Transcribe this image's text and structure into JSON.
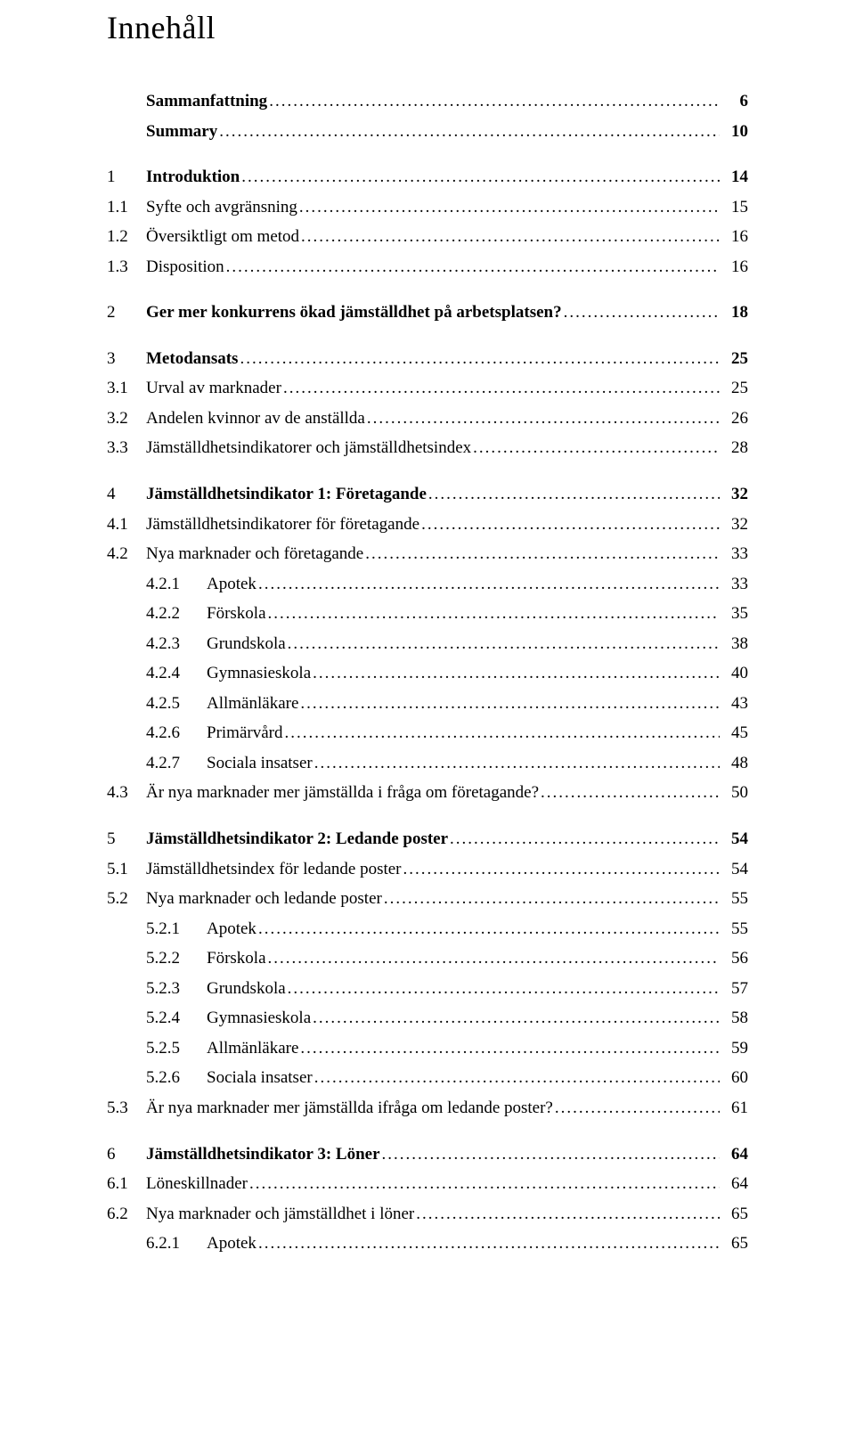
{
  "title": "Innehåll",
  "leader": "................................................................................................................................................................................................................",
  "entries": [
    {
      "level": 0,
      "num": "",
      "text": "Sammanfattning",
      "page": "6",
      "bold": true
    },
    {
      "level": 0,
      "num": "",
      "text": "Summary",
      "page": "10",
      "bold": true
    },
    {
      "level": 1,
      "num": "1",
      "text": "Introduktion",
      "page": "14",
      "bold": true,
      "gapBefore": "lg"
    },
    {
      "level": 2,
      "num": "1.1",
      "text": "Syfte och avgränsning",
      "page": "15"
    },
    {
      "level": 2,
      "num": "1.2",
      "text": "Översiktligt om metod",
      "page": "16"
    },
    {
      "level": 2,
      "num": "1.3",
      "text": "Disposition",
      "page": "16"
    },
    {
      "level": 1,
      "num": "2",
      "text": "Ger mer konkurrens ökad jämställdhet på arbetsplatsen?",
      "page": "18",
      "bold": true,
      "gapBefore": "lg"
    },
    {
      "level": 1,
      "num": "3",
      "text": "Metodansats",
      "page": "25",
      "bold": true,
      "gapBefore": "lg"
    },
    {
      "level": 2,
      "num": "3.1",
      "text": "Urval av marknader",
      "page": "25"
    },
    {
      "level": 2,
      "num": "3.2",
      "text": "Andelen kvinnor av de anställda",
      "page": "26"
    },
    {
      "level": 2,
      "num": "3.3",
      "text": "Jämställdhetsindikatorer och jämställdhetsindex",
      "page": "28"
    },
    {
      "level": 1,
      "num": "4",
      "text": "Jämställdhetsindikator 1: Företagande",
      "page": "32",
      "bold": true,
      "gapBefore": "lg"
    },
    {
      "level": 2,
      "num": "4.1",
      "text": "Jämställdhetsindikatorer för företagande",
      "page": "32"
    },
    {
      "level": 2,
      "num": "4.2",
      "text": "Nya marknader och företagande",
      "page": "33"
    },
    {
      "level": 3,
      "num": "4.2.1",
      "text": "Apotek",
      "page": "33"
    },
    {
      "level": 3,
      "num": "4.2.2",
      "text": "Förskola",
      "page": "35"
    },
    {
      "level": 3,
      "num": "4.2.3",
      "text": "Grundskola",
      "page": "38"
    },
    {
      "level": 3,
      "num": "4.2.4",
      "text": "Gymnasieskola",
      "page": "40"
    },
    {
      "level": 3,
      "num": "4.2.5",
      "text": "Allmänläkare",
      "page": "43"
    },
    {
      "level": 3,
      "num": "4.2.6",
      "text": "Primärvård",
      "page": "45"
    },
    {
      "level": 3,
      "num": "4.2.7",
      "text": "Sociala insatser",
      "page": "48"
    },
    {
      "level": 2,
      "num": "4.3",
      "text": "Är nya marknader mer jämställda i fråga om företagande?",
      "page": "50"
    },
    {
      "level": 1,
      "num": "5",
      "text": "Jämställdhetsindikator 2: Ledande poster",
      "page": "54",
      "bold": true,
      "gapBefore": "lg"
    },
    {
      "level": 2,
      "num": "5.1",
      "text": "Jämställdhetsindex för ledande poster",
      "page": "54"
    },
    {
      "level": 2,
      "num": "5.2",
      "text": "Nya marknader och ledande poster",
      "page": "55"
    },
    {
      "level": 3,
      "num": "5.2.1",
      "text": "Apotek",
      "page": "55"
    },
    {
      "level": 3,
      "num": "5.2.2",
      "text": "Förskola",
      "page": "56"
    },
    {
      "level": 3,
      "num": "5.2.3",
      "text": "Grundskola",
      "page": "57"
    },
    {
      "level": 3,
      "num": "5.2.4",
      "text": "Gymnasieskola",
      "page": "58"
    },
    {
      "level": 3,
      "num": "5.2.5",
      "text": "Allmänläkare",
      "page": "59"
    },
    {
      "level": 3,
      "num": "5.2.6",
      "text": "Sociala insatser",
      "page": "60"
    },
    {
      "level": 2,
      "num": "5.3",
      "text": "Är nya marknader mer jämställda ifråga om ledande poster?",
      "page": "61"
    },
    {
      "level": 1,
      "num": "6",
      "text": "Jämställdhetsindikator 3: Löner",
      "page": "64",
      "bold": true,
      "gapBefore": "lg"
    },
    {
      "level": 2,
      "num": "6.1",
      "text": "Löneskillnader",
      "page": "64"
    },
    {
      "level": 2,
      "num": "6.2",
      "text": "Nya marknader och jämställdhet i löner",
      "page": "65"
    },
    {
      "level": 3,
      "num": "6.2.1",
      "text": "Apotek",
      "page": "65"
    }
  ]
}
